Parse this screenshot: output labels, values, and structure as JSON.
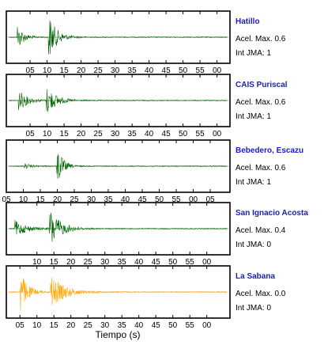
{
  "chart_data": {
    "type": "line",
    "xlabel": "Tiempo (s)",
    "tick_labels": [
      "05",
      "10",
      "15",
      "20",
      "25",
      "30",
      "35",
      "40",
      "45",
      "50",
      "55",
      "00",
      "05"
    ],
    "info_prefix_acel": "Acel. Max. ",
    "info_prefix_int": "Int JMA: ",
    "panels": [
      {
        "station": "Hatillo",
        "acel_max": "0.6",
        "int_jma": "1",
        "color": "#006400",
        "ticks_shown": 12,
        "tick_offset": 1.4,
        "bursts": [
          {
            "t": 3.2,
            "amp": 0.55,
            "decay": 1.8
          },
          {
            "t": 12.4,
            "amp": 1.0,
            "decay": 2.2
          }
        ]
      },
      {
        "station": "CAIS Puriscal",
        "acel_max": "0.6",
        "int_jma": "1",
        "color": "#006400",
        "ticks_shown": 12,
        "tick_offset": 1.4,
        "bursts": [
          {
            "t": 3.6,
            "amp": 0.45,
            "decay": 2.5
          },
          {
            "t": 11.8,
            "amp": 0.6,
            "decay": 2.8
          }
        ]
      },
      {
        "station": "Bebedero, Escazu",
        "acel_max": "0.6",
        "int_jma": "1",
        "color": "#006400",
        "ticks_shown": 13,
        "tick_offset": 0.0,
        "bursts": [
          {
            "t": 5.2,
            "amp": 0.12,
            "decay": 2.0
          },
          {
            "t": 14.8,
            "amp": 0.95,
            "decay": 1.6
          }
        ]
      },
      {
        "station": "San Ignacio Acosta",
        "acel_max": "0.4",
        "int_jma": "0",
        "color": "#006400",
        "ticks_shown": 11,
        "tick_offset": 1.8,
        "bursts": [
          {
            "t": 2.5,
            "amp": 0.35,
            "decay": 3.5
          },
          {
            "t": 12.6,
            "amp": 0.9,
            "decay": 3.0
          }
        ]
      },
      {
        "station": "La Sabana",
        "acel_max": "0.0",
        "int_jma": "0",
        "color": "#ffa500",
        "ticks_shown": 12,
        "tick_offset": 0.8,
        "bursts": [
          {
            "t": 4.0,
            "amp": 1.0,
            "decay": 2.0
          },
          {
            "t": 13.0,
            "amp": 0.7,
            "decay": 4.0
          }
        ]
      }
    ]
  }
}
